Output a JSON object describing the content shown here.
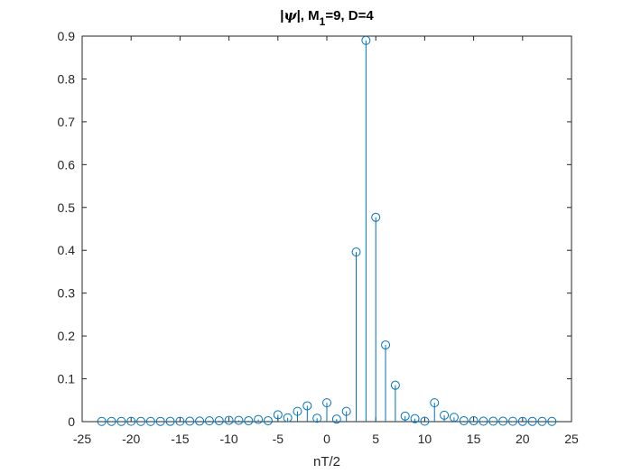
{
  "chart_data": {
    "type": "stem",
    "title_prefix": "|",
    "title_psi": "ψ",
    "title_mid": "|, M",
    "title_sub": "1",
    "title_suffix": "=9, D=4",
    "xlabel": "nT/2",
    "ylabel": "",
    "xlim": [
      -25,
      25
    ],
    "ylim": [
      0,
      0.9
    ],
    "xticks": [
      -25,
      -20,
      -15,
      -10,
      -5,
      0,
      5,
      10,
      15,
      20,
      25
    ],
    "yticks": [
      0,
      0.1,
      0.2,
      0.3,
      0.4,
      0.5,
      0.6,
      0.7,
      0.8,
      0.9
    ],
    "xtick_labels": [
      "-25",
      "-20",
      "-15",
      "-10",
      "-5",
      "0",
      "5",
      "10",
      "15",
      "20",
      "25"
    ],
    "ytick_labels": [
      "0",
      "0.1",
      "0.2",
      "0.3",
      "0.4",
      "0.5",
      "0.6",
      "0.7",
      "0.8",
      "0.9"
    ],
    "grid": false,
    "color": "#0072BD",
    "x": [
      -23,
      -22,
      -21,
      -20,
      -19,
      -18,
      -17,
      -16,
      -15,
      -14,
      -13,
      -12,
      -11,
      -10,
      -9,
      -8,
      -7,
      -6,
      -5,
      -4,
      -3,
      -2,
      -1,
      0,
      1,
      2,
      3,
      4,
      5,
      6,
      7,
      8,
      9,
      10,
      11,
      12,
      13,
      14,
      15,
      16,
      17,
      18,
      19,
      20,
      21,
      22,
      23
    ],
    "y": [
      0.0005,
      0.0005,
      0.0005,
      0.0008,
      0.0005,
      0.0005,
      0.0006,
      0.0007,
      0.0008,
      0.001,
      0.0012,
      0.0018,
      0.002,
      0.003,
      0.003,
      0.002,
      0.005,
      0.002,
      0.016,
      0.009,
      0.024,
      0.037,
      0.008,
      0.044,
      0.006,
      0.024,
      0.396,
      0.89,
      0.477,
      0.179,
      0.085,
      0.013,
      0.007,
      0.001,
      0.044,
      0.015,
      0.01,
      0.002,
      0.002,
      0.001,
      0.001,
      0.001,
      0.0008,
      0.0006,
      0.0006,
      0.0005,
      0.0005
    ]
  }
}
